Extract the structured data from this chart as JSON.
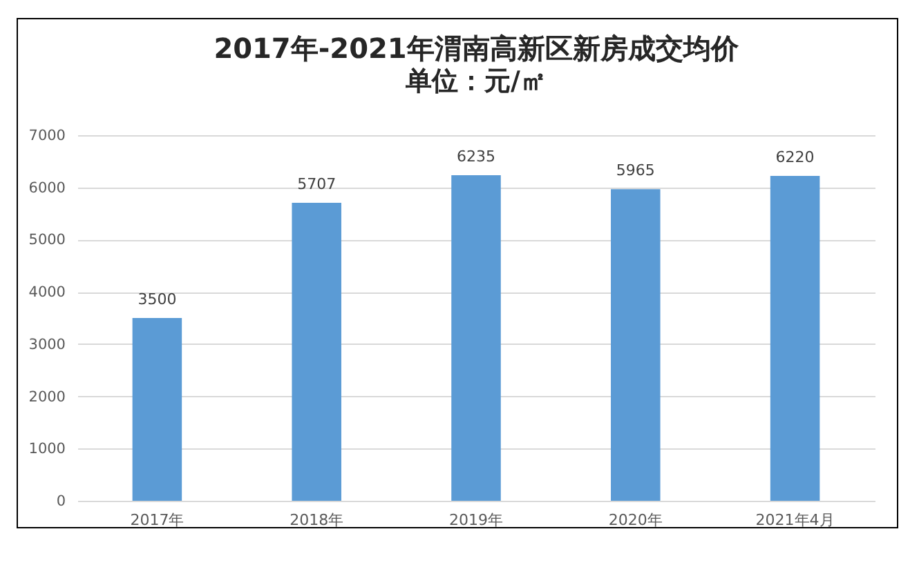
{
  "chart_data": {
    "type": "bar",
    "title": "2017年-2021年渭南高新区新房成交均价",
    "subtitle": "单位：元/㎡",
    "categories": [
      "2017年",
      "2018年",
      "2019年",
      "2020年",
      "2021年4月"
    ],
    "values": [
      3500,
      5707,
      6235,
      5965,
      6220
    ],
    "color": "#5b9bd5",
    "ylim": [
      0,
      7000
    ],
    "yticks": [
      0,
      1000,
      2000,
      3000,
      4000,
      5000,
      6000,
      7000
    ],
    "grid": "y",
    "data_labels": true
  }
}
